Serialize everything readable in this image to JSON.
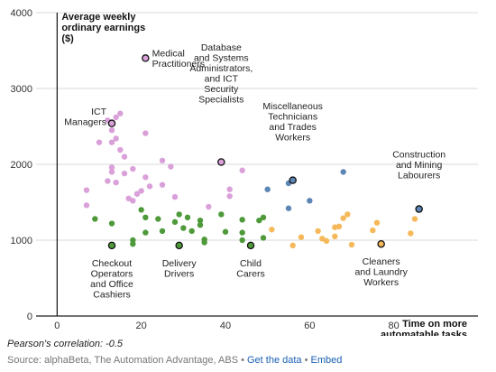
{
  "chart_data": {
    "type": "scatter",
    "y_title": [
      "Average weekly",
      "ordinary earnings",
      "($)"
    ],
    "x_title": [
      "Time on more",
      "automatable tasks",
      "(%)"
    ],
    "xlim": [
      -5,
      100
    ],
    "ylim": [
      0,
      4000
    ],
    "x_ticks": [
      0,
      20,
      40,
      60,
      80
    ],
    "y_ticks": [
      0,
      1000,
      2000,
      3000,
      4000
    ],
    "grid": "horizontal",
    "colors": {
      "pink": "#d9a0d9",
      "green": "#4e9a3a",
      "orange": "#f5b95a",
      "blue": "#5b86b5"
    },
    "points": [
      {
        "x": 7,
        "y": 1660,
        "color": "pink"
      },
      {
        "x": 7,
        "y": 1460,
        "color": "pink"
      },
      {
        "x": 10,
        "y": 2290,
        "color": "pink"
      },
      {
        "x": 12,
        "y": 2580,
        "color": "pink"
      },
      {
        "x": 13,
        "y": 2540,
        "color": "pink",
        "highlight": true
      },
      {
        "x": 13,
        "y": 2290,
        "color": "pink"
      },
      {
        "x": 13,
        "y": 2450,
        "color": "pink"
      },
      {
        "x": 14,
        "y": 2620,
        "color": "pink"
      },
      {
        "x": 15,
        "y": 2670,
        "color": "pink"
      },
      {
        "x": 14,
        "y": 2340,
        "color": "pink"
      },
      {
        "x": 15,
        "y": 2190,
        "color": "pink"
      },
      {
        "x": 16,
        "y": 2100,
        "color": "pink"
      },
      {
        "x": 13,
        "y": 1960,
        "color": "pink"
      },
      {
        "x": 13,
        "y": 1900,
        "color": "pink"
      },
      {
        "x": 12,
        "y": 1780,
        "color": "pink"
      },
      {
        "x": 14,
        "y": 1760,
        "color": "pink"
      },
      {
        "x": 16,
        "y": 1880,
        "color": "pink"
      },
      {
        "x": 17,
        "y": 1550,
        "color": "pink"
      },
      {
        "x": 18,
        "y": 1520,
        "color": "pink"
      },
      {
        "x": 18,
        "y": 1940,
        "color": "pink"
      },
      {
        "x": 19,
        "y": 1610,
        "color": "pink"
      },
      {
        "x": 20,
        "y": 1650,
        "color": "pink"
      },
      {
        "x": 21,
        "y": 1830,
        "color": "pink"
      },
      {
        "x": 21,
        "y": 2410,
        "color": "pink"
      },
      {
        "x": 22,
        "y": 1710,
        "color": "pink"
      },
      {
        "x": 21,
        "y": 3400,
        "color": "pink",
        "highlight": true
      },
      {
        "x": 25,
        "y": 2050,
        "color": "pink"
      },
      {
        "x": 25,
        "y": 1730,
        "color": "pink"
      },
      {
        "x": 27,
        "y": 1970,
        "color": "pink"
      },
      {
        "x": 28,
        "y": 1570,
        "color": "pink"
      },
      {
        "x": 36,
        "y": 1440,
        "color": "pink"
      },
      {
        "x": 39,
        "y": 2030,
        "color": "pink",
        "highlight": true
      },
      {
        "x": 41,
        "y": 1670,
        "color": "pink"
      },
      {
        "x": 41,
        "y": 1580,
        "color": "pink"
      },
      {
        "x": 44,
        "y": 1920,
        "color": "pink"
      },
      {
        "x": 9,
        "y": 1280,
        "color": "green"
      },
      {
        "x": 13,
        "y": 1220,
        "color": "green"
      },
      {
        "x": 13,
        "y": 930,
        "color": "green",
        "highlight": true
      },
      {
        "x": 18,
        "y": 950,
        "color": "green"
      },
      {
        "x": 18,
        "y": 1000,
        "color": "green"
      },
      {
        "x": 20,
        "y": 1400,
        "color": "green"
      },
      {
        "x": 21,
        "y": 1300,
        "color": "green"
      },
      {
        "x": 21,
        "y": 1100,
        "color": "green"
      },
      {
        "x": 24,
        "y": 1280,
        "color": "green"
      },
      {
        "x": 25,
        "y": 1120,
        "color": "green"
      },
      {
        "x": 28,
        "y": 1240,
        "color": "green"
      },
      {
        "x": 29,
        "y": 1340,
        "color": "green"
      },
      {
        "x": 29,
        "y": 930,
        "color": "green",
        "highlight": true
      },
      {
        "x": 30,
        "y": 1160,
        "color": "green"
      },
      {
        "x": 31,
        "y": 1300,
        "color": "green"
      },
      {
        "x": 32,
        "y": 1120,
        "color": "green"
      },
      {
        "x": 34,
        "y": 1260,
        "color": "green"
      },
      {
        "x": 34,
        "y": 1200,
        "color": "green"
      },
      {
        "x": 35,
        "y": 1010,
        "color": "green"
      },
      {
        "x": 35,
        "y": 970,
        "color": "green"
      },
      {
        "x": 39,
        "y": 1340,
        "color": "green"
      },
      {
        "x": 40,
        "y": 1110,
        "color": "green"
      },
      {
        "x": 44,
        "y": 1270,
        "color": "green"
      },
      {
        "x": 44,
        "y": 1100,
        "color": "green"
      },
      {
        "x": 44,
        "y": 1000,
        "color": "green"
      },
      {
        "x": 46,
        "y": 930,
        "color": "green",
        "highlight": true
      },
      {
        "x": 48,
        "y": 1260,
        "color": "green"
      },
      {
        "x": 49,
        "y": 1300,
        "color": "green"
      },
      {
        "x": 49,
        "y": 1030,
        "color": "green"
      },
      {
        "x": 51,
        "y": 1140,
        "color": "orange"
      },
      {
        "x": 56,
        "y": 930,
        "color": "orange"
      },
      {
        "x": 58,
        "y": 1040,
        "color": "orange"
      },
      {
        "x": 62,
        "y": 1120,
        "color": "orange"
      },
      {
        "x": 63,
        "y": 1020,
        "color": "orange"
      },
      {
        "x": 64,
        "y": 990,
        "color": "orange"
      },
      {
        "x": 66,
        "y": 1050,
        "color": "orange"
      },
      {
        "x": 66,
        "y": 1170,
        "color": "orange"
      },
      {
        "x": 67,
        "y": 1180,
        "color": "orange"
      },
      {
        "x": 68,
        "y": 1290,
        "color": "orange"
      },
      {
        "x": 69,
        "y": 1340,
        "color": "orange"
      },
      {
        "x": 70,
        "y": 940,
        "color": "orange"
      },
      {
        "x": 75,
        "y": 1130,
        "color": "orange"
      },
      {
        "x": 76,
        "y": 1230,
        "color": "orange"
      },
      {
        "x": 77,
        "y": 950,
        "color": "orange",
        "highlight": true
      },
      {
        "x": 84,
        "y": 1090,
        "color": "orange"
      },
      {
        "x": 85,
        "y": 1280,
        "color": "orange"
      },
      {
        "x": 50,
        "y": 1670,
        "color": "blue"
      },
      {
        "x": 55,
        "y": 1420,
        "color": "blue"
      },
      {
        "x": 55,
        "y": 1750,
        "color": "blue"
      },
      {
        "x": 56,
        "y": 1790,
        "color": "blue",
        "highlight": true
      },
      {
        "x": 60,
        "y": 1520,
        "color": "blue"
      },
      {
        "x": 68,
        "y": 1900,
        "color": "blue"
      },
      {
        "x": 86,
        "y": 1410,
        "color": "blue",
        "highlight": true
      }
    ],
    "annotations": [
      {
        "lines": [
          "Medical",
          "Practitioners"
        ],
        "x": 21.5,
        "y": 3400,
        "anchor": "start",
        "dx": 5,
        "dy": -4
      },
      {
        "lines": [
          "ICT",
          "Managers"
        ],
        "x": 13,
        "y": 2540,
        "anchor": "end",
        "dx": -6,
        "dy": -2
      },
      {
        "lines": [
          "Database",
          "and Systems",
          "Administrators,",
          "and ICT",
          "Security",
          "Specialists"
        ],
        "x": 39,
        "y": 2030,
        "anchor": "middle",
        "dx": 0,
        "dy": -66
      },
      {
        "lines": [
          "Miscellaneous",
          "Technicians",
          "and Trades",
          "Workers"
        ],
        "x": 56,
        "y": 1790,
        "anchor": "middle",
        "dx": 0,
        "dy": -44
      },
      {
        "lines": [
          "Construction",
          "and Mining",
          "Labourers"
        ],
        "x": 86,
        "y": 1410,
        "anchor": "middle",
        "dx": 0,
        "dy": -34
      },
      {
        "lines": [
          "Checkout",
          "Operators",
          "and Office",
          "Cashiers"
        ],
        "x": 13,
        "y": 930,
        "anchor": "middle",
        "dx": 0,
        "dy": 14
      },
      {
        "lines": [
          "Delivery",
          "Drivers"
        ],
        "x": 29,
        "y": 930,
        "anchor": "middle",
        "dx": 0,
        "dy": 14
      },
      {
        "lines": [
          "Child",
          "Carers"
        ],
        "x": 46,
        "y": 930,
        "anchor": "middle",
        "dx": 0,
        "dy": 14
      },
      {
        "lines": [
          "Cleaners",
          "and Laundry",
          "Workers"
        ],
        "x": 77,
        "y": 950,
        "anchor": "middle",
        "dx": 0,
        "dy": 14
      }
    ]
  },
  "footer": {
    "correlation": "Pearson's correlation: -0.5",
    "source_text": "Source: alphaBeta, The Automation Advantage, ABS • ",
    "get_data": "Get the data",
    "separator": " • ",
    "embed": "Embed"
  }
}
